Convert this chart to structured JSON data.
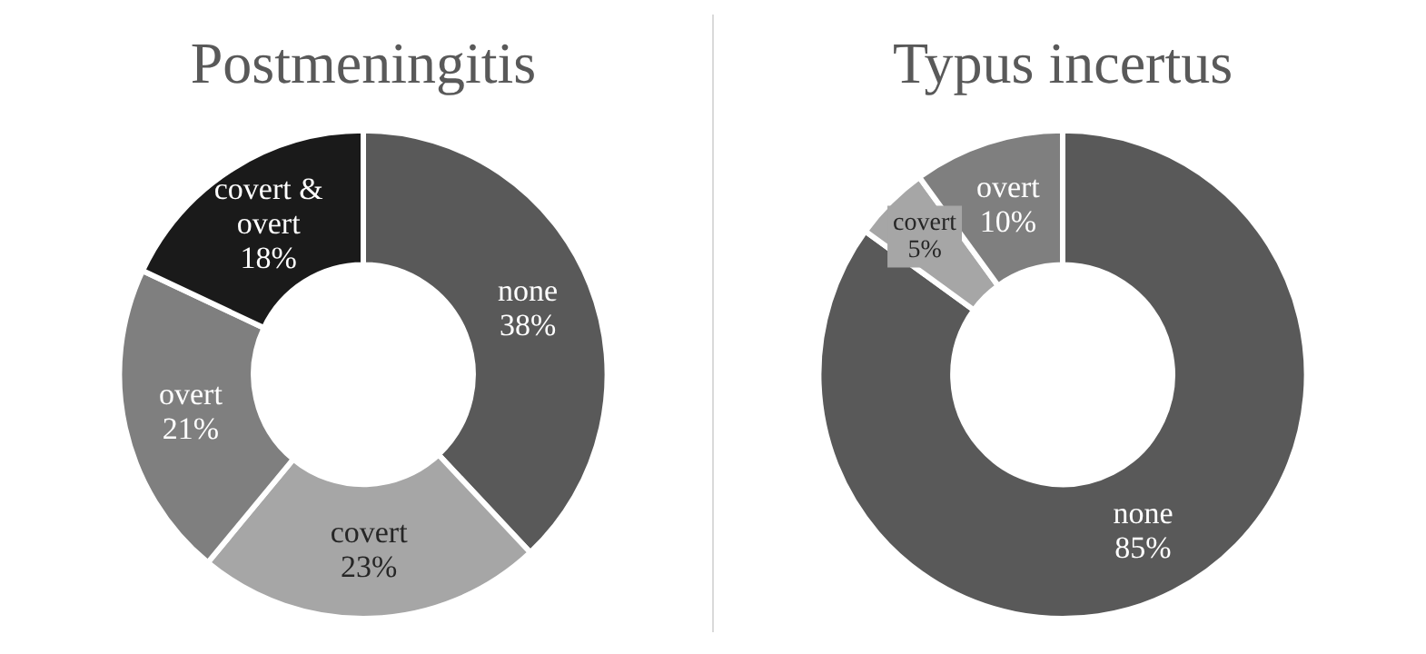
{
  "chart_data": [
    {
      "type": "donut",
      "title": "Postmeningitis",
      "categories": [
        "none",
        "covert",
        "overt",
        "covert & overt"
      ],
      "values": [
        38,
        23,
        21,
        18
      ],
      "colors": [
        "#595959",
        "#a6a6a6",
        "#7f7f7f",
        "#1a1a1a"
      ],
      "value_labels": [
        "38%",
        "23%",
        "21%",
        "18%"
      ]
    },
    {
      "type": "donut",
      "title": "Typus incertus",
      "categories": [
        "none",
        "covert",
        "overt"
      ],
      "values": [
        85,
        5,
        10
      ],
      "colors": [
        "#595959",
        "#a6a6a6",
        "#7f7f7f"
      ],
      "value_labels": [
        "85%",
        "5%",
        "10%"
      ]
    }
  ]
}
